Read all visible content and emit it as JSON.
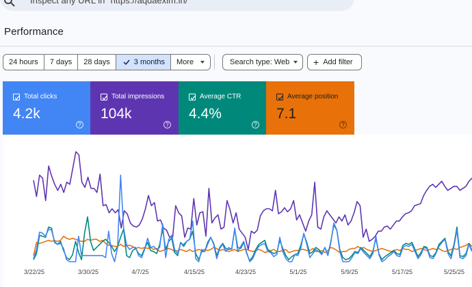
{
  "search": {
    "placeholder": "Inspect any URL in \"https://aquaexim.in/\""
  },
  "performance": {
    "title": "Performance"
  },
  "date_range": {
    "options": [
      "24 hours",
      "7 days",
      "28 days",
      "3 months",
      "More"
    ],
    "selected": "3 months"
  },
  "filters": {
    "search_type": "Search type: Web",
    "add_filter": "Add filter"
  },
  "metrics": {
    "clicks": {
      "label": "Total clicks",
      "value": "4.2k",
      "color": "#4285f4"
    },
    "impressions": {
      "label": "Total impressions",
      "value": "104k",
      "color": "#5e35b1"
    },
    "ctr": {
      "label": "Average CTR",
      "value": "4.4%",
      "color": "#00897b"
    },
    "position": {
      "label": "Average position",
      "value": "7.1",
      "color": "#e8710a"
    }
  },
  "chart_data": {
    "type": "line",
    "x_tick_labels": [
      "3/22/25",
      "3/30/25",
      "4/7/25",
      "4/15/25",
      "4/23/25",
      "5/1/25",
      "5/9/25",
      "5/17/25",
      "5/25/25"
    ],
    "series": [
      {
        "color": "#5e35b1",
        "values": [
          80,
          64,
          85,
          82,
          60,
          94,
          84,
          76,
          70,
          76,
          68,
          78,
          76,
          92,
          108,
          105,
          78,
          73,
          83,
          72,
          72,
          68,
          86,
          55,
          56,
          48,
          52,
          48,
          51,
          33,
          50,
          47,
          38,
          35,
          34,
          36,
          42,
          52,
          65,
          55,
          58,
          40,
          41,
          33,
          31,
          24,
          24,
          55,
          48,
          45,
          24,
          33,
          32,
          62,
          36,
          48,
          49,
          25,
          72,
          38,
          43,
          46,
          32,
          34,
          60,
          51,
          38,
          48,
          32,
          28,
          24,
          12,
          30,
          28,
          31,
          45,
          50,
          52,
          52,
          50,
          70,
          47,
          49,
          53,
          49,
          52,
          60,
          41,
          46,
          38,
          30,
          40,
          46,
          78,
          34,
          32,
          44,
          50,
          46,
          42,
          38,
          44,
          40,
          46,
          36,
          40,
          48,
          59,
          55,
          24,
          32,
          20,
          22,
          25,
          30,
          30,
          34,
          35,
          32,
          36,
          40,
          40,
          44,
          47,
          48,
          50,
          55,
          56,
          57,
          65,
          70,
          74,
          76,
          73,
          76,
          79,
          74,
          70,
          72,
          74,
          74,
          70,
          72,
          74,
          79,
          82
        ]
      },
      {
        "color": "#e8710a",
        "values": [
          6,
          19,
          18,
          19,
          20,
          21,
          20,
          21,
          20,
          21,
          25,
          23,
          22,
          23,
          22,
          21,
          20,
          20,
          22,
          21,
          22,
          22,
          20,
          21,
          18,
          16,
          16,
          15,
          15,
          17,
          15,
          16,
          16,
          15,
          13,
          14,
          13,
          14,
          13,
          14,
          12,
          13,
          10,
          11,
          12,
          13,
          12,
          10,
          11,
          12,
          11,
          10,
          12,
          10,
          11,
          12,
          11,
          12,
          11,
          12,
          14,
          13,
          11,
          12,
          11,
          10,
          11,
          12,
          10,
          11,
          12,
          12,
          11,
          10,
          11,
          12,
          11,
          9,
          10,
          11,
          12,
          10,
          10,
          11,
          12,
          9,
          10,
          11,
          11,
          12,
          12,
          11,
          11,
          13,
          10,
          10,
          11,
          9,
          11,
          14,
          13,
          11,
          9,
          10,
          10,
          12,
          13,
          13,
          15,
          13,
          14,
          12,
          11,
          10,
          11,
          12,
          13,
          12,
          11,
          10,
          11,
          12,
          11,
          13,
          12,
          12,
          10,
          11,
          12,
          13,
          12,
          11,
          12,
          13,
          12,
          13,
          11,
          10,
          11,
          12,
          13,
          12,
          14,
          15,
          16,
          18,
          15
        ]
      },
      {
        "color": "#00897b",
        "values": [
          2,
          8,
          26,
          25,
          24,
          34,
          33,
          19,
          17,
          20,
          11,
          4,
          2,
          7,
          20,
          9,
          2,
          28,
          44,
          20,
          11,
          14,
          17,
          20,
          22,
          19,
          15,
          10,
          15,
          24,
          32,
          6,
          4,
          11,
          13,
          8,
          6,
          13,
          19,
          11,
          10,
          8,
          17,
          32,
          12,
          20,
          23,
          9,
          6,
          19,
          15,
          20,
          22,
          30,
          8,
          2,
          10,
          10,
          19,
          24,
          18,
          6,
          14,
          18,
          13,
          12,
          13,
          32,
          14,
          13,
          19,
          8,
          1,
          5,
          12,
          17,
          19,
          21,
          12,
          10,
          8,
          9,
          21,
          13,
          6,
          2,
          5,
          7,
          8,
          16,
          27,
          19,
          8,
          10,
          14,
          12,
          8,
          14,
          7,
          20,
          36,
          31,
          12,
          4,
          2,
          3,
          6,
          10,
          9,
          14,
          11,
          8,
          5,
          10,
          23,
          8,
          2,
          5,
          7,
          9,
          11,
          8,
          7,
          16,
          18,
          17,
          19,
          12,
          5,
          9,
          15,
          14,
          6,
          5,
          9,
          17,
          20,
          23,
          10,
          6,
          17,
          34,
          6,
          5,
          8,
          18,
          11
        ]
      },
      {
        "color": "#4285f4",
        "values": [
          3,
          12,
          29,
          28,
          25,
          32,
          31,
          20,
          17,
          18,
          13,
          2,
          0,
          0,
          0,
          25,
          6,
          6,
          6,
          6,
          6,
          6,
          6,
          6,
          4,
          30,
          8,
          0,
          14,
          85,
          33,
          16,
          12,
          14,
          14,
          6,
          4,
          12,
          23,
          14,
          15,
          12,
          14,
          37,
          4,
          22,
          26,
          12,
          8,
          18,
          17,
          20,
          22,
          40,
          3,
          0,
          12,
          10,
          17,
          24,
          17,
          3,
          13,
          17,
          10,
          14,
          12,
          33,
          10,
          15,
          20,
          9,
          0,
          3,
          10,
          15,
          17,
          18,
          10,
          9,
          5,
          7,
          24,
          10,
          3,
          0,
          0,
          7,
          6,
          13,
          28,
          17,
          4,
          8,
          12,
          10,
          7,
          14,
          6,
          19,
          38,
          31,
          10,
          0,
          0,
          0,
          4,
          9,
          8,
          13,
          9,
          6,
          3,
          8,
          25,
          7,
          0,
          2,
          5,
          7,
          10,
          6,
          5,
          14,
          16,
          15,
          17,
          10,
          3,
          7,
          14,
          13,
          4,
          3,
          8,
          15,
          19,
          22,
          8,
          3,
          15,
          31,
          4,
          3,
          6,
          17,
          10
        ]
      }
    ]
  }
}
